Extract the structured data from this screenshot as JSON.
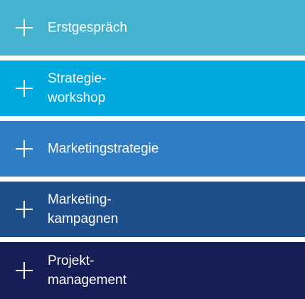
{
  "accordion": {
    "items": [
      {
        "label": "Erstgespräch",
        "icon": "plus-icon",
        "color": "#45b3d0"
      },
      {
        "label": "Strategie-\nworkshop",
        "icon": "plus-icon",
        "color": "#00a9e0"
      },
      {
        "label": "Marketingstrategie",
        "icon": "plus-icon",
        "color": "#2f7dc4"
      },
      {
        "label": "Marketing-\nkampagnen",
        "icon": "plus-icon",
        "color": "#1f4e8c"
      },
      {
        "label": "Projekt-\nmanagement",
        "icon": "plus-icon",
        "color": "#161e56"
      }
    ]
  }
}
